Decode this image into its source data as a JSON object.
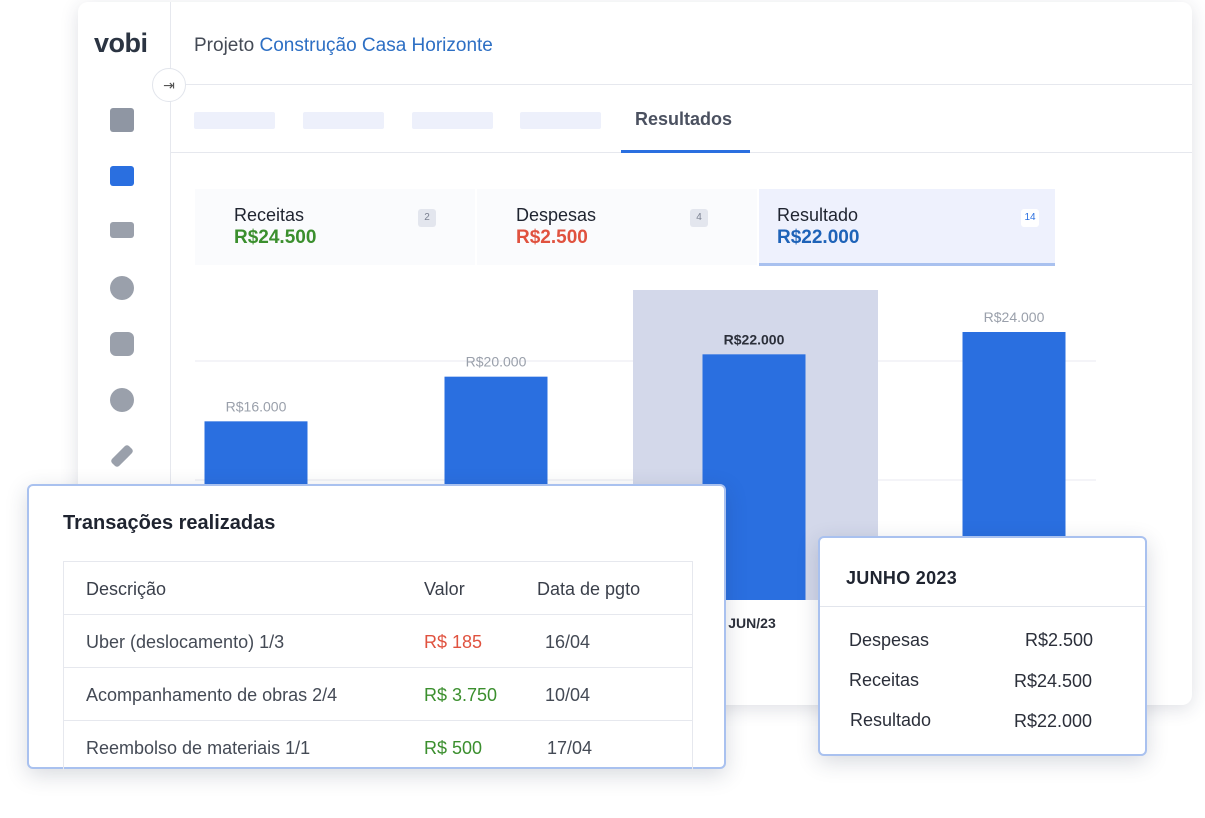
{
  "header": {
    "logo": "vobi",
    "project_prefix": "Projeto",
    "project_name": "Construção Casa Horizonte"
  },
  "tabs": {
    "active": "Resultados"
  },
  "summary": [
    {
      "label": "Receitas",
      "value": "R$24.500",
      "count": 2
    },
    {
      "label": "Despesas",
      "value": "R$2.500",
      "count": 4
    },
    {
      "label": "Resultado",
      "value": "R$22.000",
      "count": 14
    }
  ],
  "chart_data": {
    "type": "bar",
    "categories": [
      null,
      null,
      "JUN/23",
      null
    ],
    "values": [
      16000,
      20000,
      22000,
      24000
    ],
    "value_labels": [
      "R$16.000",
      "R$20.000",
      "R$22.000",
      "R$24.000"
    ],
    "color": "#2a6fe0",
    "ylim": [
      0,
      24000
    ]
  },
  "transactions": {
    "title": "Transações realizadas",
    "columns": [
      "Descrição",
      "Valor",
      "Data de pgto"
    ],
    "rows": [
      [
        "Uber (deslocamento) 1/3",
        "R$ 185",
        "16/04"
      ],
      [
        "Acompanhamento de obras 2/4",
        "R$ 3.750",
        "10/04"
      ],
      [
        "Reembolso de materiais 1/1",
        "R$ 500",
        "17/04"
      ]
    ]
  },
  "month_popup": {
    "title": "JUNHO 2023",
    "rows": [
      [
        "Despesas",
        "R$2.500"
      ],
      [
        "Receitas",
        "R$24.500"
      ],
      [
        "Resultado",
        "R$22.000"
      ]
    ]
  }
}
